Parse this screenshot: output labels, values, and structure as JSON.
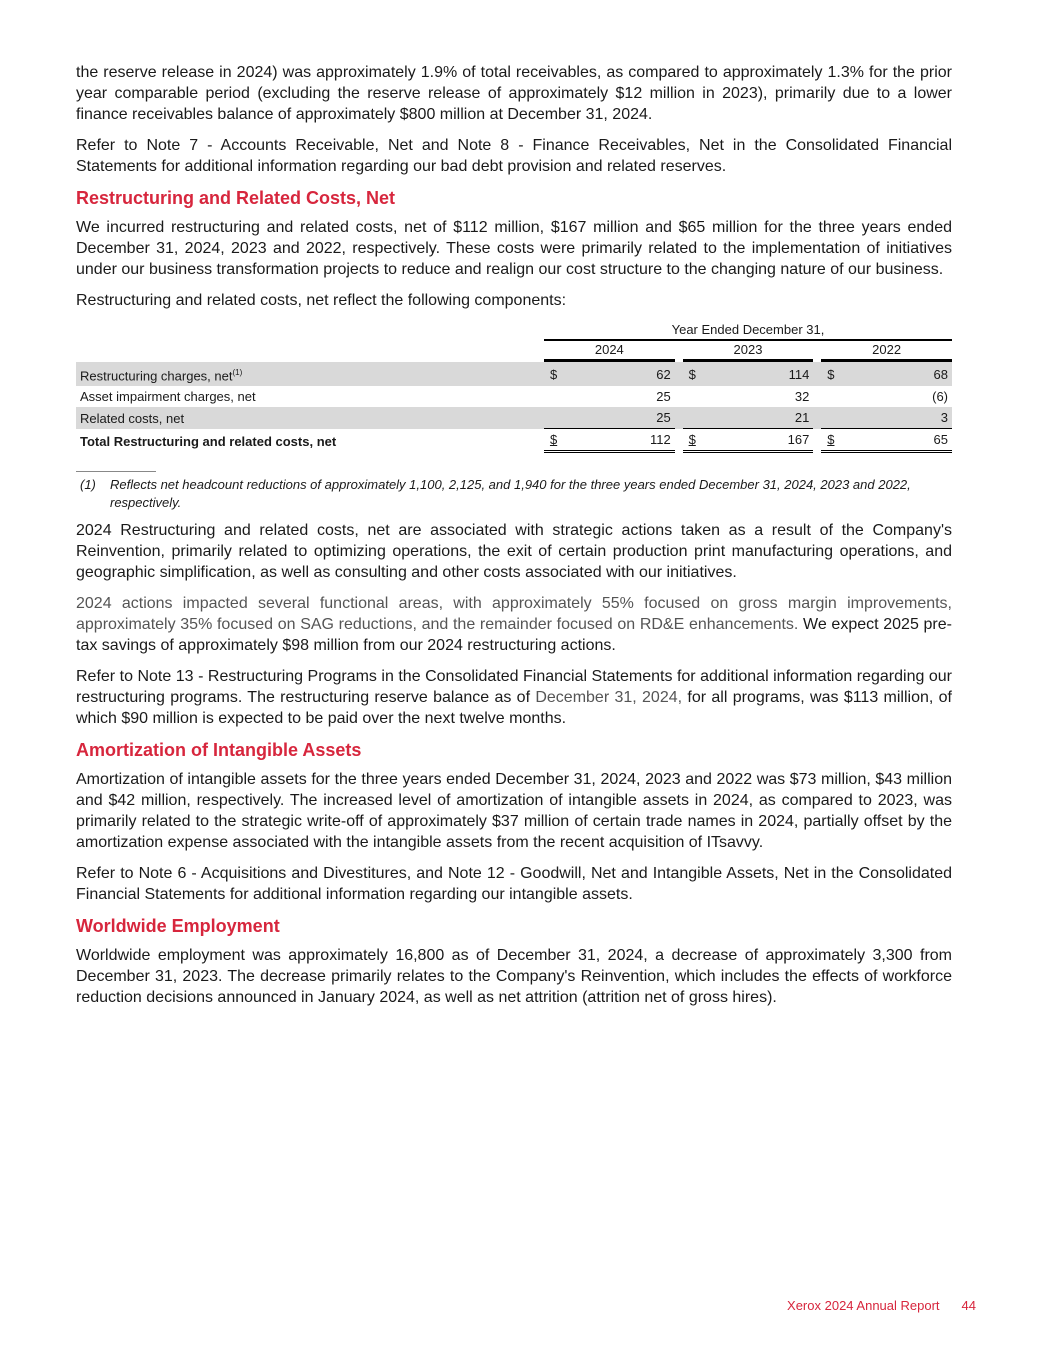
{
  "paragraphs_top": [
    "the reserve release in 2024) was approximately 1.9% of total receivables, as compared to approximately 1.3% for the prior year comparable period (excluding the reserve release of approximately $12 million in 2023), primarily due to a lower finance receivables balance of approximately $800 million at December 31, 2024.",
    "Refer to Note 7 - Accounts Receivable, Net and Note 8 - Finance Receivables, Net in the Consolidated Financial Statements for additional information regarding our bad debt provision and related reserves."
  ],
  "restructuring": {
    "heading": "Restructuring and Related Costs, Net",
    "p1": "We incurred restructuring and related costs, net of $112 million, $167 million and $65 million for the three years ended December 31, 2024, 2023 and 2022, respectively. These costs were primarily related to the implementation of initiatives under our business transformation projects to reduce and realign our cost structure to the changing nature of our business.",
    "p2": "Restructuring and related costs, net reflect the following components:",
    "table": {
      "period_header": "Year Ended December 31,",
      "years": [
        "2024",
        "2023",
        "2022"
      ],
      "rows": [
        {
          "label": "Restructuring charges, net",
          "sup": "(1)",
          "values": [
            "62",
            "114",
            "68"
          ],
          "dollar": "$"
        },
        {
          "label": "Asset impairment charges, net",
          "values": [
            "25",
            "32",
            "(6)"
          ]
        },
        {
          "label": "Related costs, net",
          "values": [
            "25",
            "21",
            "3"
          ]
        },
        {
          "label": "Total Restructuring and related costs, net",
          "values": [
            "112",
            "167",
            "65"
          ],
          "dollar": "$"
        }
      ]
    },
    "footnote_marker": "(1)",
    "footnote": "Reflects net headcount reductions of approximately 1,100, 2,125, and 1,940 for the three years ended December 31, 2024, 2023 and 2022, respectively.",
    "p3": "2024 Restructuring and related costs, net are associated with strategic actions taken as a result of the Company's Reinvention, primarily related to optimizing operations, the exit of certain production print manufacturing operations, and geographic simplification, as well as consulting and other costs associated with our initiatives.",
    "p4a": "2024 actions impacted several functional areas, with approximately 55% focused on gross margin improvements, approximately 35% focused on SAG reductions, and the remainder focused on RD&E enhancements.",
    "p4b": " We expect 2025 pre-tax savings of approximately $98 million from our 2024 restructuring actions.",
    "p5a": "Refer to Note 13 - Restructuring Programs in the Consolidated Financial Statements for additional information regarding our restructuring programs. The restructuring reserve balance as of ",
    "p5b": "December 31, 2024,",
    "p5c": " for all programs, was $113 million, of which $90 million is expected to be paid over the next twelve months."
  },
  "amortization": {
    "heading": "Amortization of Intangible Assets",
    "p1": "Amortization of intangible assets for the three years ended December 31, 2024, 2023 and 2022 was $73 million, $43 million and $42 million, respectively. The increased level of amortization of intangible assets in 2024, as compared to 2023, was primarily related to the strategic write-off of approximately $37 million of certain trade names in 2024, partially offset by the amortization expense associated with the intangible assets from the recent acquisition of ITsavvy.",
    "p2": "Refer to Note 6 - Acquisitions and Divestitures, and Note 12 - Goodwill, Net and Intangible Assets, Net in the Consolidated Financial Statements for additional information regarding our intangible assets."
  },
  "employment": {
    "heading": "Worldwide Employment",
    "p1": "Worldwide employment was approximately 16,800 as of December 31, 2024, a decrease of approximately 3,300 from December 31, 2023. The decrease primarily relates to the Company's Reinvention, which includes the effects of workforce reduction decisions announced in January 2024, as well as net attrition (attrition net of gross hires)."
  },
  "footer": {
    "report": "Xerox 2024 Annual Report",
    "page": "44"
  },
  "colors": {
    "heading": "#d7263d",
    "shade": "#d9d9d9"
  }
}
